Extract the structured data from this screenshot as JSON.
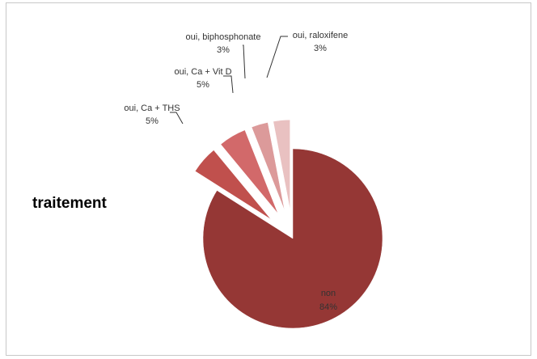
{
  "chart_data": {
    "type": "pie",
    "title": "traitement",
    "exploded": true,
    "slices": [
      {
        "label": "non",
        "percent_label": "84%",
        "value": 84,
        "color": "#953735"
      },
      {
        "label": "oui, Ca + THS",
        "percent_label": "5%",
        "value": 5,
        "color": "#C0504D"
      },
      {
        "label": "oui, Ca + Vit D",
        "percent_label": "5%",
        "value": 5,
        "color": "#D2696A"
      },
      {
        "label": "oui, biphosphonate",
        "percent_label": "3%",
        "value": 3,
        "color": "#DC9A9A"
      },
      {
        "label": "oui, raloxifene",
        "percent_label": "3%",
        "value": 3,
        "color": "#E9C1C1"
      }
    ]
  }
}
